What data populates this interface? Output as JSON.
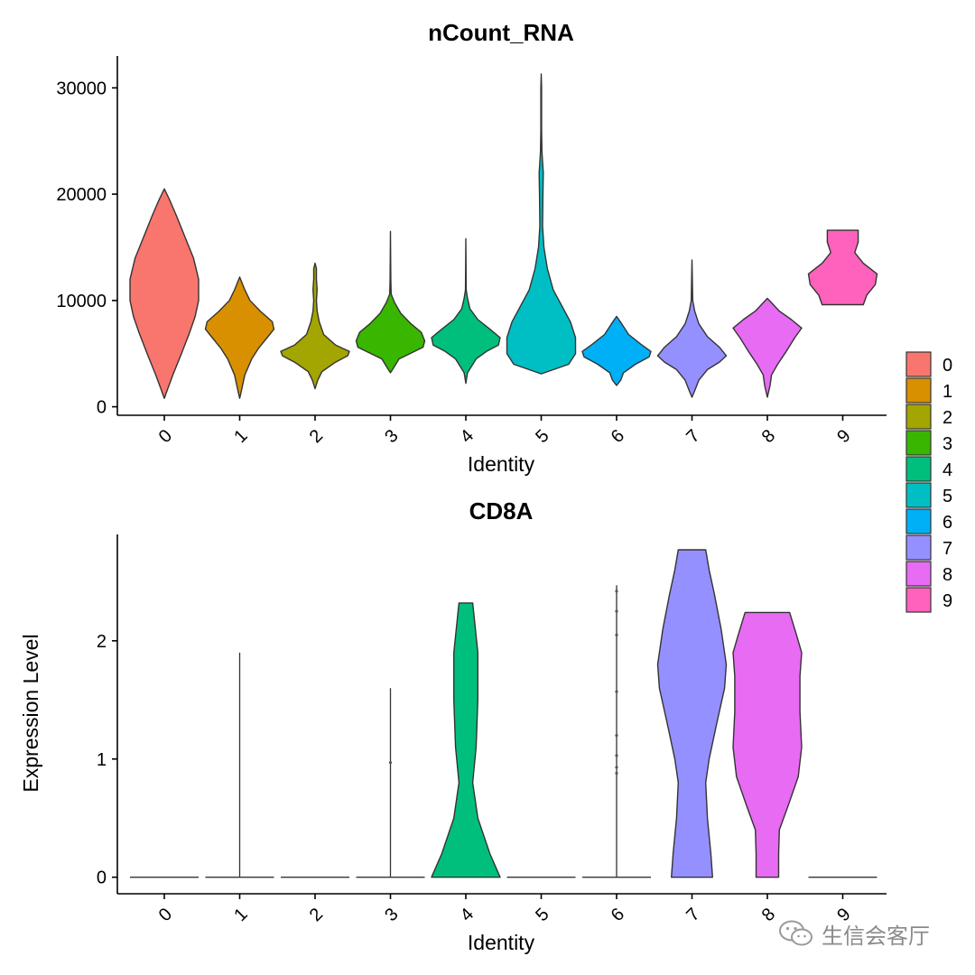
{
  "chart_data": [
    {
      "type": "violin",
      "title": "nCount_RNA",
      "xlabel": "Identity",
      "ylabel": "",
      "categories": [
        "0",
        "1",
        "2",
        "3",
        "4",
        "5",
        "6",
        "7",
        "8",
        "9"
      ],
      "yticks": [
        0,
        10000,
        20000,
        30000
      ],
      "ytick_labels": [
        "0",
        "10000",
        "20000",
        "30000"
      ],
      "ylim": [
        -800,
        33000
      ],
      "grid": false,
      "series": [
        {
          "category": "0",
          "color": "#F8766D",
          "min": 800,
          "max": 20500,
          "profile": [
            [
              800,
              0
            ],
            [
              1500,
              0.08
            ],
            [
              3000,
              0.25
            ],
            [
              5000,
              0.5
            ],
            [
              7000,
              0.74
            ],
            [
              8500,
              0.9
            ],
            [
              10000,
              1.0
            ],
            [
              12000,
              1.0
            ],
            [
              14000,
              0.85
            ],
            [
              16000,
              0.6
            ],
            [
              18000,
              0.35
            ],
            [
              19500,
              0.15
            ],
            [
              20500,
              0
            ]
          ]
        },
        {
          "category": "1",
          "color": "#D89000",
          "min": 800,
          "max": 12200,
          "profile": [
            [
              800,
              0
            ],
            [
              1500,
              0.05
            ],
            [
              3000,
              0.15
            ],
            [
              4500,
              0.35
            ],
            [
              5500,
              0.55
            ],
            [
              6500,
              0.8
            ],
            [
              7300,
              1.0
            ],
            [
              8000,
              0.95
            ],
            [
              9000,
              0.6
            ],
            [
              10000,
              0.3
            ],
            [
              11000,
              0.15
            ],
            [
              12200,
              0
            ]
          ]
        },
        {
          "category": "2",
          "color": "#A3A500",
          "min": 1700,
          "max": 13500,
          "profile": [
            [
              1700,
              0
            ],
            [
              2500,
              0.08
            ],
            [
              3300,
              0.2
            ],
            [
              4200,
              0.6
            ],
            [
              4800,
              0.95
            ],
            [
              5200,
              1.0
            ],
            [
              5800,
              0.6
            ],
            [
              6800,
              0.25
            ],
            [
              8000,
              0.12
            ],
            [
              9000,
              0.06
            ],
            [
              10000,
              0.04
            ],
            [
              11000,
              0.06
            ],
            [
              12000,
              0.04
            ],
            [
              13000,
              0.04
            ],
            [
              13500,
              0
            ]
          ]
        },
        {
          "category": "3",
          "color": "#39B600",
          "min": 3200,
          "max": 16500,
          "profile": [
            [
              3200,
              0
            ],
            [
              3600,
              0.08
            ],
            [
              4500,
              0.25
            ],
            [
              5600,
              0.95
            ],
            [
              6200,
              1.0
            ],
            [
              7000,
              0.9
            ],
            [
              7800,
              0.6
            ],
            [
              8800,
              0.3
            ],
            [
              9800,
              0.12
            ],
            [
              10600,
              0.02
            ],
            [
              12000,
              0.01
            ],
            [
              16500,
              0
            ]
          ]
        },
        {
          "category": "4",
          "color": "#00BF7D",
          "min": 2200,
          "max": 15800,
          "profile": [
            [
              2200,
              0
            ],
            [
              3200,
              0.05
            ],
            [
              4500,
              0.3
            ],
            [
              5200,
              0.6
            ],
            [
              5800,
              0.95
            ],
            [
              6500,
              1.0
            ],
            [
              7300,
              0.7
            ],
            [
              8200,
              0.35
            ],
            [
              9200,
              0.12
            ],
            [
              10200,
              0.05
            ],
            [
              11000,
              0.01
            ],
            [
              15800,
              0
            ]
          ]
        },
        {
          "category": "5",
          "color": "#00BFC4",
          "min": 3100,
          "max": 31300,
          "profile": [
            [
              3100,
              0
            ],
            [
              4000,
              0.8
            ],
            [
              5000,
              1.0
            ],
            [
              6500,
              1.0
            ],
            [
              8000,
              0.85
            ],
            [
              9500,
              0.6
            ],
            [
              11000,
              0.35
            ],
            [
              13000,
              0.18
            ],
            [
              15000,
              0.08
            ],
            [
              17000,
              0.04
            ],
            [
              20000,
              0.05
            ],
            [
              22000,
              0.06
            ],
            [
              24000,
              0.02
            ],
            [
              26000,
              0.01
            ],
            [
              30000,
              0.01
            ],
            [
              31300,
              0
            ]
          ]
        },
        {
          "category": "6",
          "color": "#00B0F6",
          "min": 2000,
          "max": 8500,
          "profile": [
            [
              2000,
              0
            ],
            [
              2500,
              0.12
            ],
            [
              3200,
              0.2
            ],
            [
              4000,
              0.55
            ],
            [
              4700,
              0.95
            ],
            [
              5200,
              1.0
            ],
            [
              5900,
              0.7
            ],
            [
              6800,
              0.35
            ],
            [
              7800,
              0.15
            ],
            [
              8500,
              0
            ]
          ]
        },
        {
          "category": "7",
          "color": "#9590FF",
          "min": 900,
          "max": 13800,
          "profile": [
            [
              900,
              0
            ],
            [
              1500,
              0.08
            ],
            [
              2500,
              0.2
            ],
            [
              3500,
              0.45
            ],
            [
              4200,
              0.8
            ],
            [
              4800,
              1.0
            ],
            [
              5600,
              0.8
            ],
            [
              6600,
              0.45
            ],
            [
              7800,
              0.2
            ],
            [
              9000,
              0.08
            ],
            [
              10000,
              0.02
            ],
            [
              13800,
              0
            ]
          ]
        },
        {
          "category": "8",
          "color": "#E76BF3",
          "min": 900,
          "max": 10200,
          "profile": [
            [
              900,
              0
            ],
            [
              2000,
              0.08
            ],
            [
              3000,
              0.12
            ],
            [
              4000,
              0.3
            ],
            [
              5200,
              0.55
            ],
            [
              6500,
              0.8
            ],
            [
              7400,
              1.0
            ],
            [
              8200,
              0.7
            ],
            [
              9000,
              0.35
            ],
            [
              10200,
              0
            ]
          ]
        },
        {
          "category": "9",
          "color": "#FF62BC",
          "min": 9600,
          "max": 16600,
          "profile": [
            [
              9600,
              0.6
            ],
            [
              10500,
              0.7
            ],
            [
              11500,
              0.95
            ],
            [
              12500,
              1.0
            ],
            [
              13500,
              0.6
            ],
            [
              14500,
              0.35
            ],
            [
              15500,
              0.45
            ],
            [
              16600,
              0.45
            ]
          ]
        }
      ]
    },
    {
      "type": "violin",
      "title": "CD8A",
      "xlabel": "Identity",
      "ylabel": "Expression Level",
      "categories": [
        "0",
        "1",
        "2",
        "3",
        "4",
        "5",
        "6",
        "7",
        "8",
        "9"
      ],
      "yticks": [
        0,
        1,
        2
      ],
      "ytick_labels": [
        "0",
        "1",
        "2"
      ],
      "ylim": [
        -0.14,
        2.9
      ],
      "grid": false,
      "series": [
        {
          "category": "0",
          "color": "#F8766D",
          "min": 0,
          "max": 0,
          "profile": [],
          "jitter": []
        },
        {
          "category": "1",
          "color": "#D89000",
          "min": 0,
          "max": 1.9,
          "profile": [],
          "jitter": []
        },
        {
          "category": "2",
          "color": "#A3A500",
          "min": 0,
          "max": 0,
          "profile": [],
          "jitter": []
        },
        {
          "category": "3",
          "color": "#39B600",
          "min": 0,
          "max": 1.6,
          "profile": [],
          "jitter": [
            0.97
          ]
        },
        {
          "category": "4",
          "color": "#00BF7D",
          "min": 0,
          "max": 2.32,
          "profile": [
            [
              0,
              1.0
            ],
            [
              0.2,
              0.7
            ],
            [
              0.5,
              0.35
            ],
            [
              0.8,
              0.2
            ],
            [
              1.1,
              0.3
            ],
            [
              1.5,
              0.35
            ],
            [
              1.9,
              0.35
            ],
            [
              2.1,
              0.28
            ],
            [
              2.32,
              0.2
            ]
          ]
        },
        {
          "category": "5",
          "color": "#00BFC4",
          "min": 0,
          "max": 0,
          "profile": [],
          "jitter": []
        },
        {
          "category": "6",
          "color": "#00B0F6",
          "min": 0,
          "max": 2.47,
          "profile": [],
          "jitter": [
            0.88,
            0.93,
            1.03,
            1.2,
            1.57,
            2.05,
            2.25,
            2.42
          ]
        },
        {
          "category": "7",
          "color": "#9590FF",
          "min": 0,
          "max": 2.77,
          "profile": [
            [
              0,
              0.6
            ],
            [
              0.2,
              0.55
            ],
            [
              0.5,
              0.45
            ],
            [
              0.8,
              0.4
            ],
            [
              1.0,
              0.5
            ],
            [
              1.3,
              0.72
            ],
            [
              1.6,
              0.95
            ],
            [
              1.8,
              1.0
            ],
            [
              2.1,
              0.85
            ],
            [
              2.4,
              0.65
            ],
            [
              2.6,
              0.5
            ],
            [
              2.77,
              0.4
            ]
          ]
        },
        {
          "category": "8",
          "color": "#E76BF3",
          "min": 0,
          "max": 2.24,
          "profile": [
            [
              0,
              0.33
            ],
            [
              0.2,
              0.33
            ],
            [
              0.4,
              0.35
            ],
            [
              0.6,
              0.6
            ],
            [
              0.85,
              0.9
            ],
            [
              1.1,
              1.0
            ],
            [
              1.4,
              0.95
            ],
            [
              1.7,
              0.95
            ],
            [
              1.9,
              1.0
            ],
            [
              2.05,
              0.85
            ],
            [
              2.24,
              0.65
            ]
          ]
        },
        {
          "category": "9",
          "color": "#FF62BC",
          "min": 0,
          "max": 0,
          "profile": [],
          "jitter": []
        }
      ]
    }
  ],
  "legend": {
    "placement": "right",
    "items": [
      {
        "label": "0",
        "color": "#F8766D"
      },
      {
        "label": "1",
        "color": "#D89000"
      },
      {
        "label": "2",
        "color": "#A3A500"
      },
      {
        "label": "3",
        "color": "#39B600"
      },
      {
        "label": "4",
        "color": "#00BF7D"
      },
      {
        "label": "5",
        "color": "#00BFC4"
      },
      {
        "label": "6",
        "color": "#00B0F6"
      },
      {
        "label": "7",
        "color": "#9590FF"
      },
      {
        "label": "8",
        "color": "#E76BF3"
      },
      {
        "label": "9",
        "color": "#FF62BC"
      }
    ]
  },
  "watermark": {
    "text": "生信会客厅",
    "icon": "wechat-icon"
  }
}
